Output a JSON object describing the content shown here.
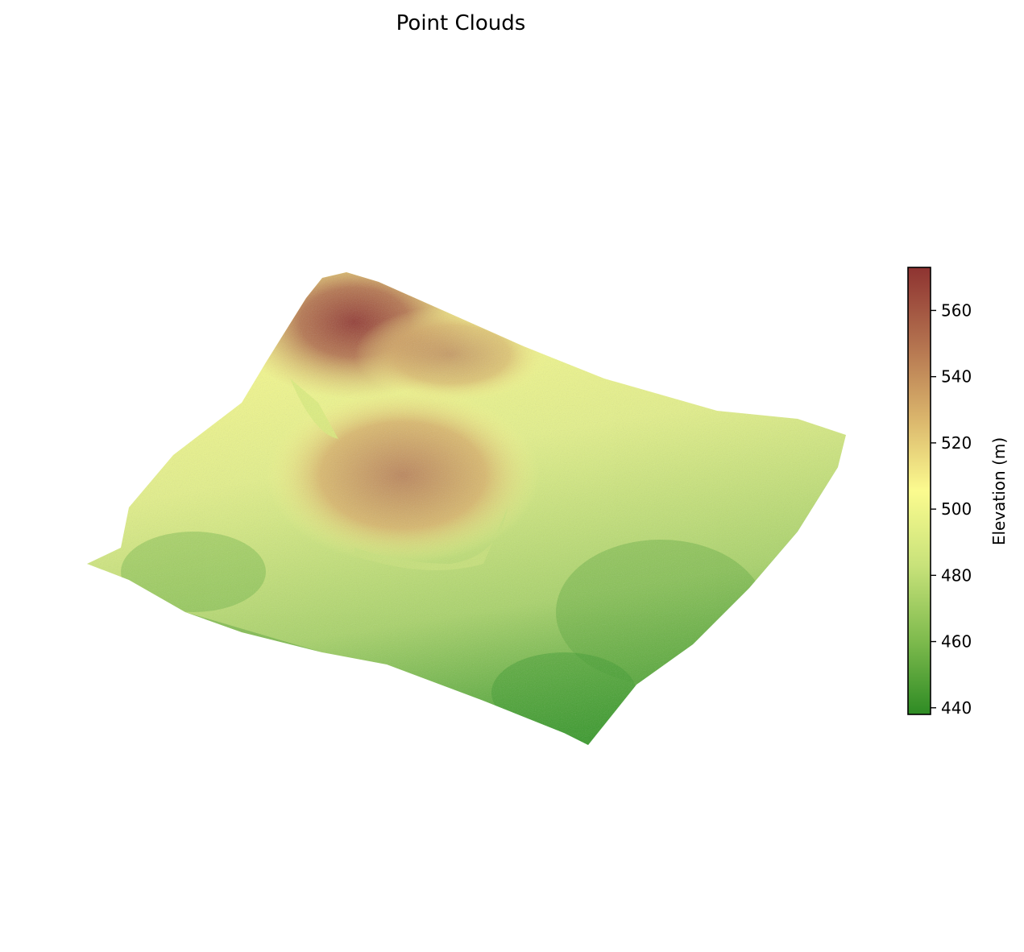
{
  "chart_data": {
    "type": "scatter",
    "projection": "3d",
    "title": "Point Clouds",
    "colorbar": {
      "label": "Elevation (m)",
      "range": [
        438,
        573
      ],
      "ticks": [
        440,
        460,
        480,
        500,
        520,
        540,
        560
      ],
      "colormap": [
        "#2e8b24",
        "#7fbb4e",
        "#c8e27a",
        "#fbfb8f",
        "#d9b36b",
        "#b2704e",
        "#8e3331"
      ]
    },
    "axes_visible": false,
    "grid": false,
    "z_label": "Elevation (m)"
  }
}
